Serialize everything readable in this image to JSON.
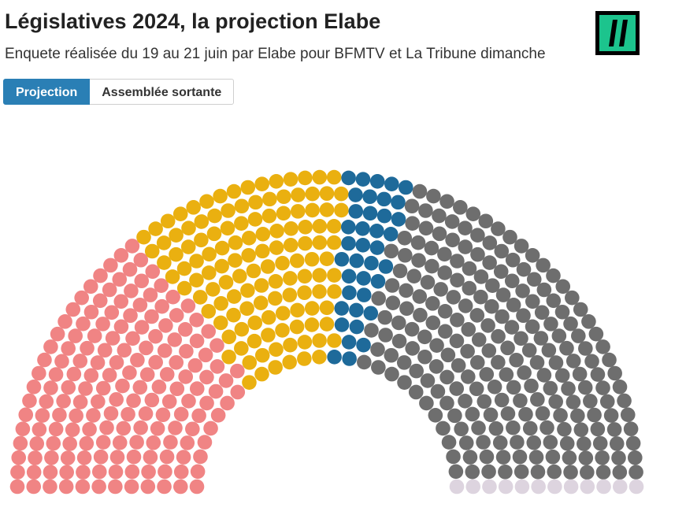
{
  "header": {
    "title": "Législatives 2024, la projection Elabe",
    "subtitle": "Enquete réalisée du 19 au 21 juin par Elabe pour BFMTV et La Tribune dimanche"
  },
  "tabs": [
    {
      "label": "Projection",
      "active": true
    },
    {
      "label": "Assemblée sortante",
      "active": false
    }
  ],
  "chart_data": {
    "type": "hemicycle",
    "total_seats": 577,
    "series": [
      {
        "color": "#f08484",
        "value": 172
      },
      {
        "color": "#eab010",
        "value": 127
      },
      {
        "color": "#1e6a9a",
        "value": 38
      },
      {
        "color": "#6e6e6e",
        "value": 228
      },
      {
        "color": "#ddd4df",
        "value": 12
      }
    ]
  }
}
